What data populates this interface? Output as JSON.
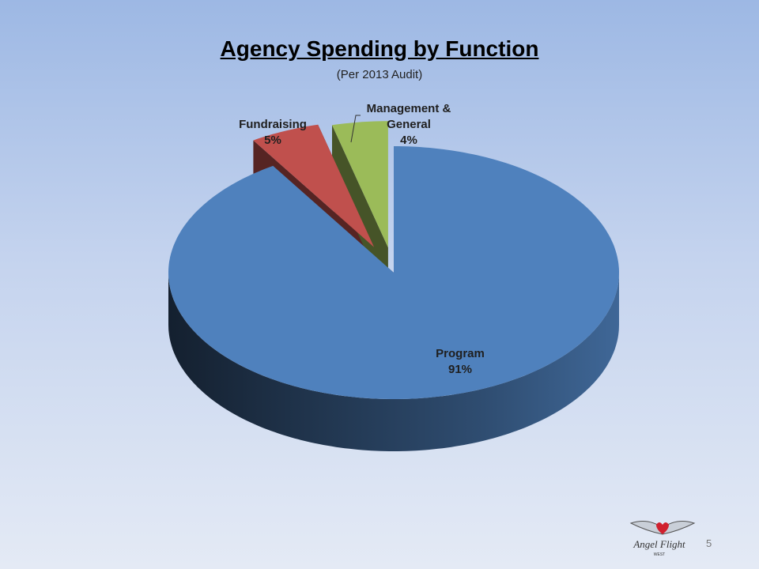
{
  "chart_data": {
    "type": "pie3d",
    "title": "Agency Spending by Function",
    "subtitle": "(Per 2013 Audit)",
    "categories": [
      "Program",
      "Fundraising",
      "Management & General"
    ],
    "values": [
      91,
      5,
      4
    ],
    "value_labels": [
      "91%",
      "5%",
      "4%"
    ],
    "colors": [
      "#4f81bd",
      "#c0504d",
      "#9bbb59"
    ]
  },
  "page_number": "5",
  "logo": {
    "text": "Angel Flight",
    "subtext": "WEST"
  }
}
